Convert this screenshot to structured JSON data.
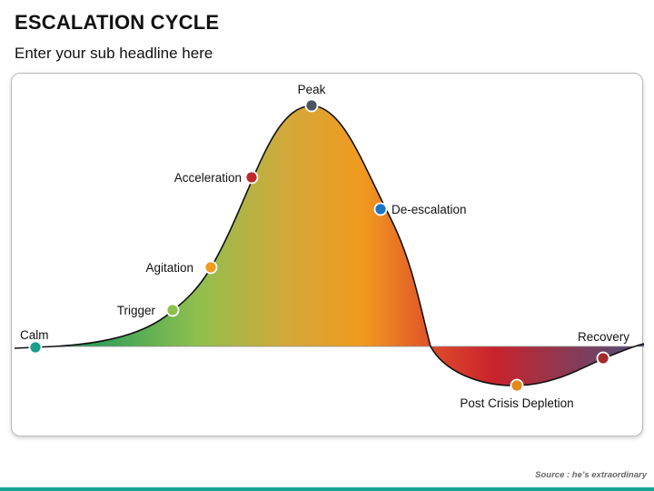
{
  "title": "ESCALATION CYCLE",
  "subtitle": "Enter your sub headline here",
  "source": "Source : he’s extraordinary",
  "colors": {
    "accent_bar": "#1aa392",
    "gradient_above": [
      "#2e9e5a",
      "#8fbf4e",
      "#d4a83a",
      "#f19a1f",
      "#e0532a"
    ],
    "gradient_below": [
      "#e04b2a",
      "#c8232c",
      "#8a3a55",
      "#4a4e78"
    ]
  },
  "stages": [
    {
      "label": "Calm",
      "color": "#17a08a"
    },
    {
      "label": "Trigger",
      "color": "#8cc04a"
    },
    {
      "label": "Agitation",
      "color": "#f29a1e"
    },
    {
      "label": "Acceleration",
      "color": "#c0272d"
    },
    {
      "label": "Peak",
      "color": "#4a5560"
    },
    {
      "label": "De-escalation",
      "color": "#1c74c4"
    },
    {
      "label": "Post Crisis Depletion",
      "color": "#e08a1a"
    },
    {
      "label": "Recovery",
      "color": "#a52a2a"
    }
  ]
}
